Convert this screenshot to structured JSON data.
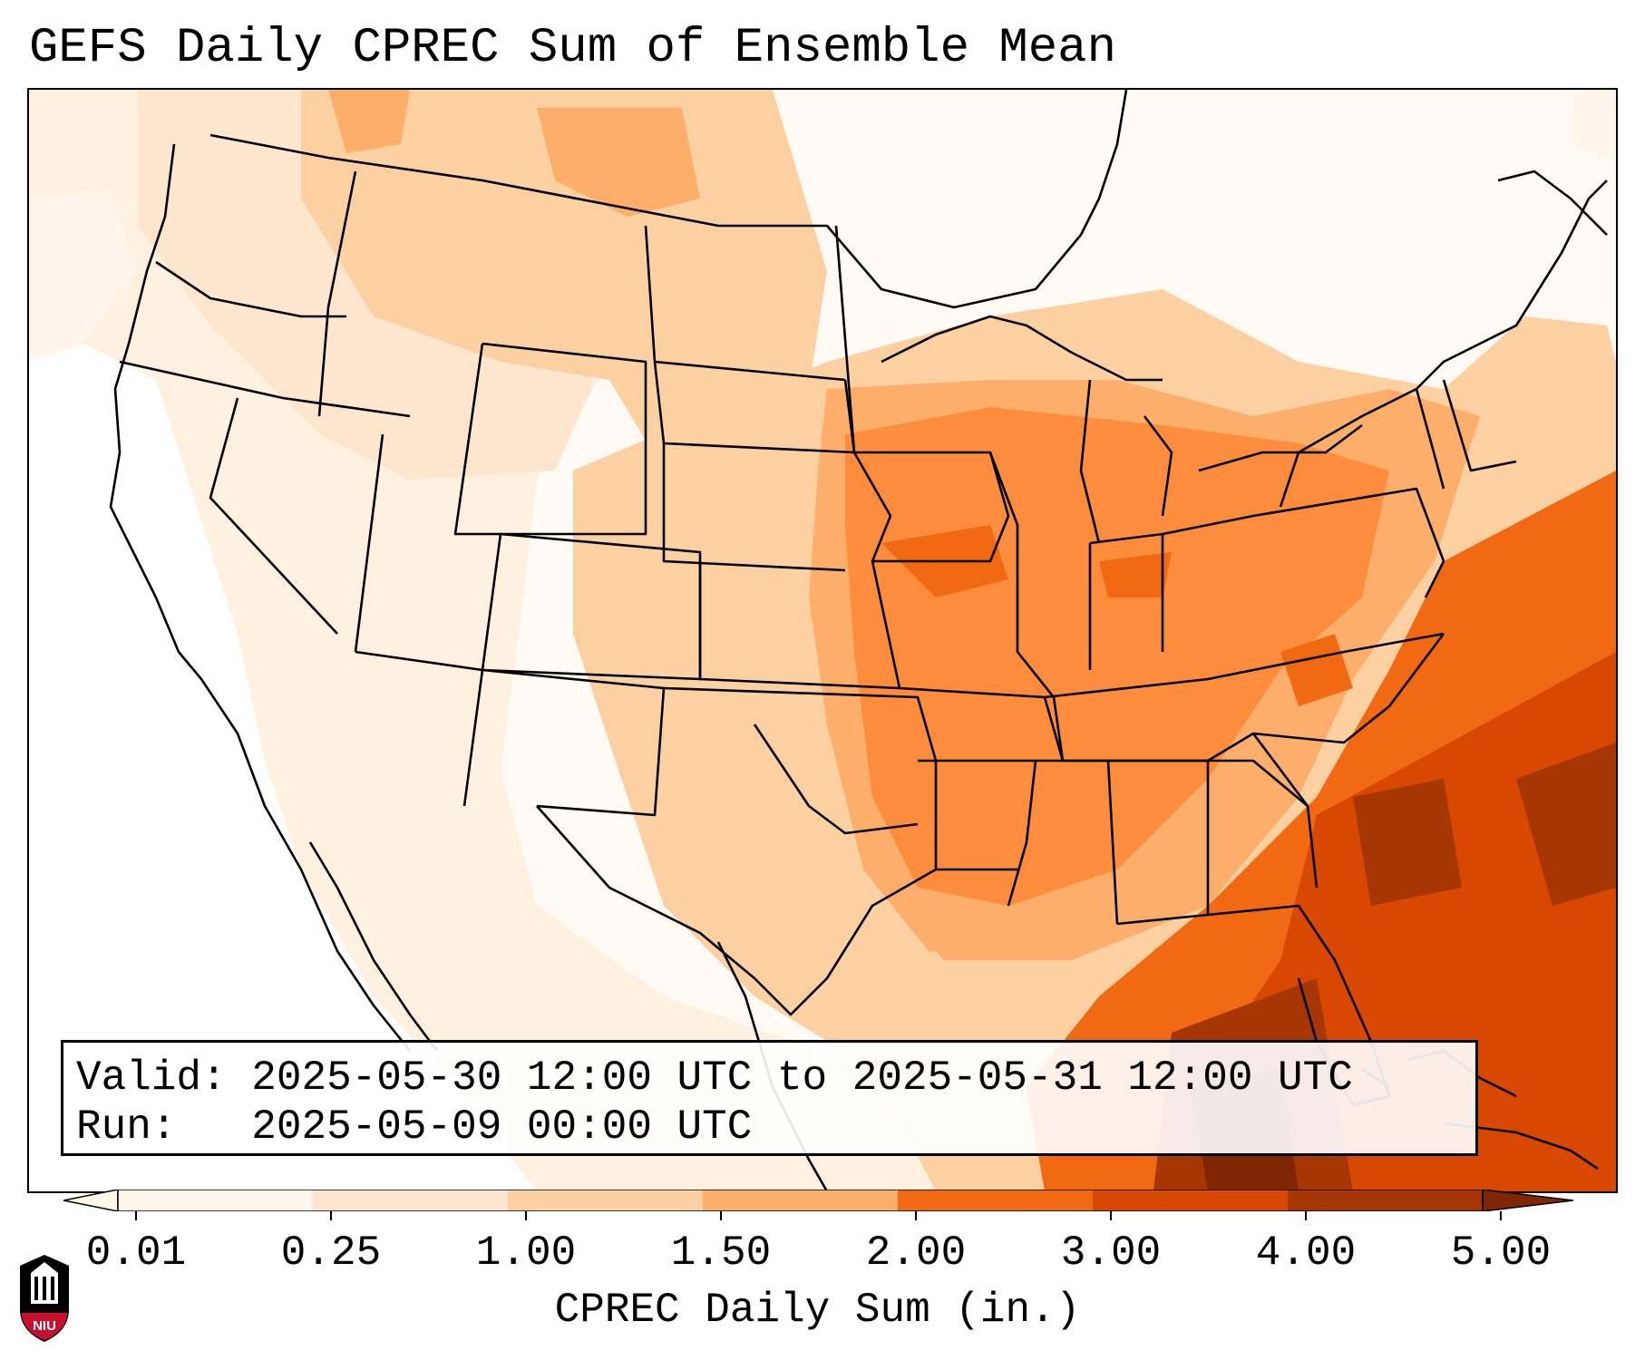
{
  "title": "GEFS Daily CPREC Sum of Ensemble Mean",
  "info": {
    "valid_label": "Valid:",
    "valid_value": "2025-05-30 12:00 UTC to 2025-05-31 12:00 UTC",
    "run_label": "Run:",
    "run_value": "2025-05-09 00:00 UTC"
  },
  "colorbar": {
    "label": "CPREC Daily Sum (in.)",
    "ticks": [
      "0.01",
      "0.25",
      "1.00",
      "1.50",
      "2.00",
      "3.00",
      "4.00",
      "5.00"
    ],
    "colors": [
      "#fff5eb",
      "#fee6ce",
      "#fdd0a2",
      "#fdae6b",
      "#fd8d3c",
      "#f16913",
      "#d94801",
      "#a63603",
      "#7f2704"
    ],
    "extend": "both"
  },
  "logo": {
    "name": "NIU",
    "colors": {
      "red": "#c8102e",
      "black": "#000000"
    }
  },
  "map": {
    "region": "Contiguous United States",
    "field": "CPREC",
    "colormap": "Oranges",
    "coastlines": true,
    "state_borders": true
  }
}
